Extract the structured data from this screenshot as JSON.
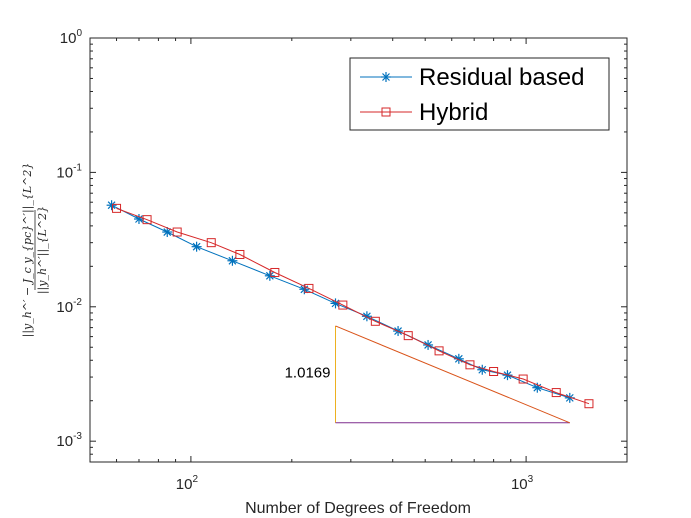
{
  "chart_data": {
    "type": "line",
    "xscale": "log",
    "yscale": "log",
    "xlabel": "Number of Degrees of Freedom",
    "ylabel_numerator": "||y_h^′ − J_c y_{pc}^′||_{L^2}",
    "ylabel_denominator": "||y_h^′||_{L^2}",
    "xlim": [
      50,
      2000
    ],
    "ylim": [
      0.0007,
      1
    ],
    "xticks": [
      {
        "value": 100,
        "base": "10",
        "exp": "2"
      },
      {
        "value": 1000,
        "base": "10",
        "exp": "3"
      }
    ],
    "yticks": [
      {
        "value": 0.001,
        "base": "10",
        "exp": "-3"
      },
      {
        "value": 0.01,
        "base": "10",
        "exp": "-2"
      },
      {
        "value": 0.1,
        "base": "10",
        "exp": "-1"
      },
      {
        "value": 1,
        "base": "10",
        "exp": "0"
      }
    ],
    "series": [
      {
        "name": "Residual based",
        "color": "#0072BD",
        "marker": "asterisk",
        "x": [
          58,
          70,
          85,
          104,
          133,
          172,
          218,
          270,
          335,
          415,
          510,
          630,
          740,
          880,
          1080,
          1350
        ],
        "y": [
          0.057,
          0.045,
          0.036,
          0.028,
          0.022,
          0.017,
          0.0135,
          0.0106,
          0.0085,
          0.0066,
          0.0052,
          0.0041,
          0.0034,
          0.0031,
          0.0025,
          0.0021
        ]
      },
      {
        "name": "Hybrid",
        "color": "#D62728",
        "marker": "square",
        "x": [
          60,
          74,
          91,
          115,
          140,
          178,
          225,
          284,
          355,
          445,
          550,
          680,
          800,
          980,
          1230,
          1540
        ],
        "y": [
          0.054,
          0.0445,
          0.036,
          0.03,
          0.0245,
          0.018,
          0.0137,
          0.0103,
          0.0078,
          0.0061,
          0.0047,
          0.0037,
          0.0033,
          0.0029,
          0.0023,
          0.0019
        ]
      }
    ],
    "slope_triangle": {
      "label": "1.0169",
      "x_left": 270,
      "x_right": 1350,
      "y_top": 0.0072,
      "y_bottom": 0.00137,
      "vertical_color": "#EDB120",
      "horizontal_color": "#7E2F8E",
      "hypotenuse_color": "#D95319"
    },
    "legend_position": "top-right",
    "grid": false
  }
}
